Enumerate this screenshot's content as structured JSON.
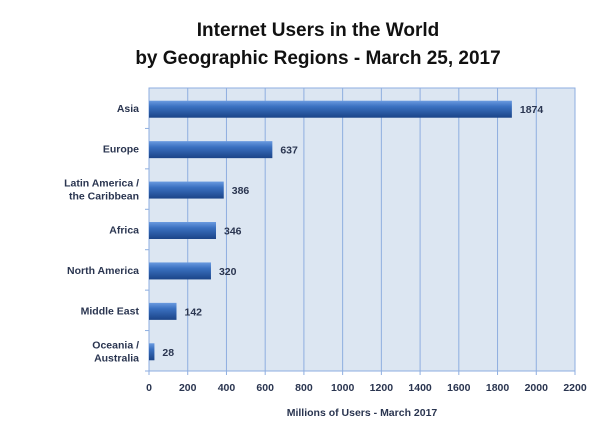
{
  "chart_data": {
    "type": "bar",
    "orientation": "horizontal",
    "title": [
      "Internet Users in the World",
      "by Geographic Regions - March 25, 2017"
    ],
    "categories": [
      [
        "Asia"
      ],
      [
        "Europe"
      ],
      [
        "Latin America /",
        "the Caribbean"
      ],
      [
        "Africa"
      ],
      [
        "North America"
      ],
      [
        "Middle East"
      ],
      [
        "Oceania  /",
        "Australia"
      ]
    ],
    "values": [
      1874,
      637,
      386,
      346,
      320,
      142,
      28
    ],
    "data_labels": [
      "1874",
      "637",
      "386",
      "346",
      "320",
      "142",
      "28"
    ],
    "xlabel": "Millions of Users - March 2017",
    "ylabel": "",
    "xlim": [
      0,
      2200
    ],
    "xticks": [
      0,
      200,
      400,
      600,
      800,
      1000,
      1200,
      1400,
      1600,
      1800,
      2000,
      2200
    ],
    "grid": true,
    "legend": "none",
    "colors": {
      "bar": "#2e63b0",
      "bar_light": "#5f8fd6",
      "bar_dark": "#1b4488",
      "plot_bg": "#dce6f2",
      "grid": "#8eaee0"
    }
  }
}
